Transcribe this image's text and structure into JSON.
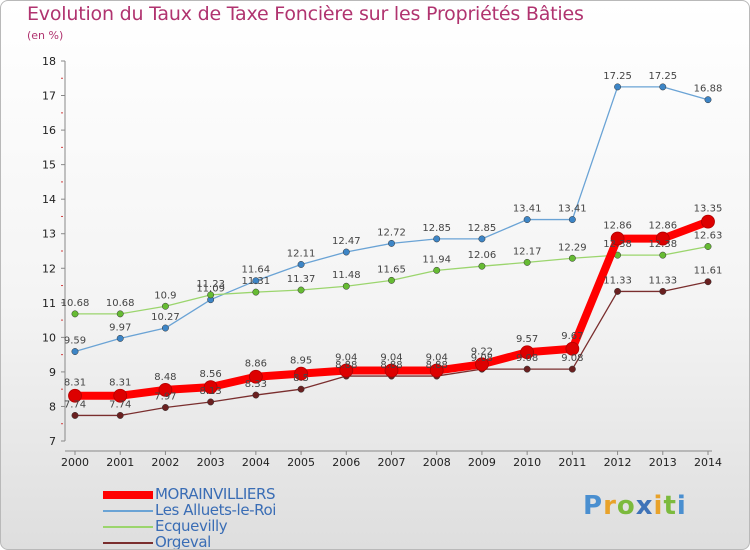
{
  "title": "Evolution du Taux de Taxe Foncière sur les Propriétés Bâties",
  "unit": "(en %)",
  "logo": {
    "text": "Proxiti"
  },
  "chart_data": {
    "type": "line",
    "title": "Evolution du Taux de Taxe Foncière sur les Propriétés Bâties",
    "ylabel": "(en %)",
    "xlabel": "",
    "ylim": [
      7,
      18
    ],
    "yticks": [
      7,
      8,
      9,
      10,
      11,
      12,
      13,
      14,
      15,
      16,
      17,
      18
    ],
    "grid": false,
    "legend_position": "bottom-left",
    "x": [
      "2000",
      "2001",
      "2002",
      "2003",
      "2004",
      "2005",
      "2006",
      "2007",
      "2008",
      "2009",
      "2010",
      "2011",
      "2012",
      "2013",
      "2014"
    ],
    "series": [
      {
        "name": "MORAINVILLIERS",
        "color": "#ff0000",
        "marker_color": "#dd0000",
        "style": "thick",
        "values": [
          8.31,
          8.31,
          8.48,
          8.56,
          8.86,
          8.95,
          9.04,
          9.04,
          9.04,
          9.22,
          9.57,
          9.67,
          12.86,
          12.86,
          13.35
        ],
        "labels": [
          "8.31",
          "8.31",
          "8.48",
          "8.56",
          "8.86",
          "8.95",
          "9.04",
          "9.04",
          "9.04",
          "9.22",
          "9.57",
          "9.67",
          "12.86",
          "12.86",
          "13.35"
        ]
      },
      {
        "name": "Les Alluets-le-Roi",
        "color": "#6aa3d5",
        "marker_color": "#3d85c6",
        "style": "thin",
        "values": [
          9.59,
          9.97,
          10.27,
          11.09,
          11.64,
          12.11,
          12.47,
          12.72,
          12.85,
          12.85,
          13.41,
          13.41,
          17.25,
          17.25,
          16.88
        ],
        "labels": [
          "9.59",
          "9.97",
          "10.27",
          "11.09",
          "11.64",
          "12.11",
          "12.47",
          "12.72",
          "12.85",
          "12.85",
          "13.41",
          "13.41",
          "17.25",
          "17.25",
          "16.88"
        ]
      },
      {
        "name": "Ecquevilly",
        "color": "#9bd56d",
        "marker_color": "#66bb33",
        "style": "thin",
        "values": [
          10.68,
          10.68,
          10.9,
          11.23,
          11.31,
          11.37,
          11.48,
          11.65,
          11.94,
          12.06,
          12.17,
          12.29,
          12.38,
          12.38,
          12.63
        ],
        "labels": [
          "10.68",
          "10.68",
          "10.9",
          "11.23",
          "11.31",
          "11.37",
          "11.48",
          "11.65",
          "11.94",
          "12.06",
          "12.17",
          "12.29",
          "12.38",
          "12.38",
          "12.63"
        ]
      },
      {
        "name": "Orgeval",
        "color": "#7a2e2e",
        "marker_color": "#6a2020",
        "style": "thin",
        "values": [
          7.74,
          7.74,
          7.97,
          8.13,
          8.33,
          8.5,
          8.88,
          8.88,
          8.88,
          9.08,
          9.08,
          9.08,
          11.33,
          11.33,
          11.61
        ],
        "labels": [
          "7.74",
          "7.74",
          "7.97",
          "8.13",
          "8.33",
          "8.5",
          "8.88",
          "8.88",
          "8.88",
          "9.08",
          "9.08",
          "9.08",
          "11.33",
          "11.33",
          "11.61"
        ]
      }
    ]
  }
}
